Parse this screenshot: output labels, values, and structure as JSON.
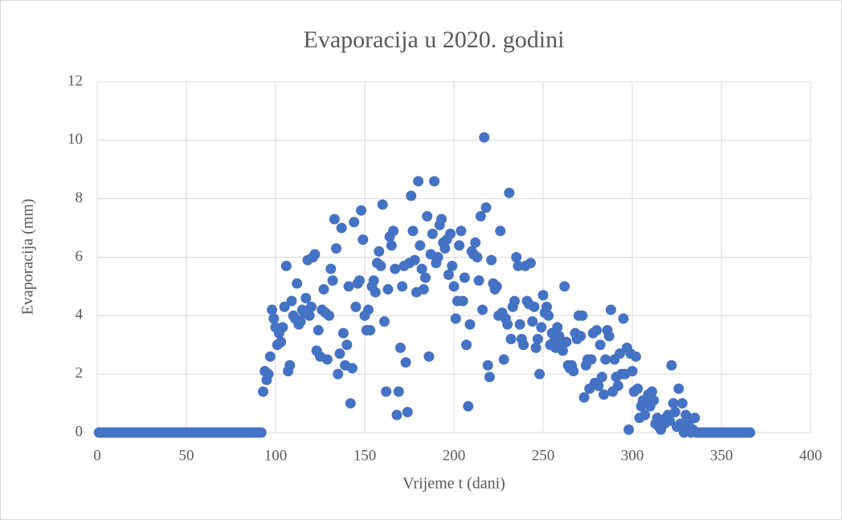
{
  "chart_data": {
    "type": "scatter",
    "title": "Evaporacija u 2020. godini",
    "x_label": "Vrijeme t (dani)",
    "y_label": "Evaporacija (mm)",
    "color": "#4472c4",
    "grid": true,
    "xlim": [
      0,
      400
    ],
    "xticks": [
      0,
      50,
      100,
      150,
      200,
      250,
      300,
      350,
      400
    ],
    "ylim": [
      0,
      12
    ],
    "yticks": [
      0,
      2,
      4,
      6,
      8,
      10,
      12
    ],
    "x": [
      1,
      2,
      3,
      4,
      5,
      6,
      7,
      8,
      9,
      10,
      11,
      12,
      13,
      14,
      15,
      16,
      17,
      18,
      19,
      20,
      21,
      22,
      23,
      24,
      25,
      26,
      27,
      28,
      29,
      30,
      31,
      32,
      33,
      34,
      35,
      36,
      37,
      38,
      39,
      40,
      41,
      42,
      43,
      44,
      45,
      46,
      47,
      48,
      49,
      50,
      51,
      52,
      53,
      54,
      55,
      56,
      57,
      58,
      59,
      60,
      61,
      62,
      63,
      64,
      65,
      66,
      67,
      68,
      69,
      70,
      71,
      72,
      73,
      74,
      75,
      76,
      77,
      78,
      79,
      80,
      81,
      82,
      83,
      84,
      85,
      86,
      87,
      88,
      89,
      90,
      91,
      92,
      93,
      94,
      95,
      96,
      97,
      98,
      99,
      100,
      101,
      102,
      103,
      104,
      105,
      106,
      107,
      108,
      109,
      110,
      111,
      112,
      113,
      114,
      115,
      116,
      117,
      118,
      119,
      120,
      121,
      122,
      123,
      124,
      125,
      126,
      127,
      128,
      129,
      130,
      131,
      132,
      133,
      134,
      135,
      136,
      137,
      138,
      139,
      140,
      141,
      142,
      143,
      144,
      145,
      146,
      147,
      148,
      149,
      150,
      151,
      152,
      153,
      154,
      155,
      156,
      157,
      158,
      159,
      160,
      161,
      162,
      163,
      164,
      165,
      166,
      167,
      168,
      169,
      170,
      171,
      172,
      173,
      174,
      175,
      176,
      177,
      178,
      179,
      180,
      181,
      182,
      183,
      184,
      185,
      186,
      187,
      188,
      189,
      190,
      191,
      192,
      193,
      194,
      195,
      196,
      197,
      198,
      199,
      200,
      201,
      202,
      203,
      204,
      205,
      206,
      207,
      208,
      209,
      210,
      211,
      212,
      213,
      214,
      215,
      216,
      217,
      218,
      219,
      220,
      221,
      222,
      223,
      224,
      225,
      226,
      227,
      228,
      229,
      230,
      231,
      232,
      233,
      234,
      235,
      236,
      237,
      238,
      239,
      240,
      241,
      242,
      243,
      244,
      245,
      246,
      247,
      248,
      249,
      250,
      251,
      252,
      253,
      254,
      255,
      256,
      257,
      258,
      259,
      260,
      261,
      262,
      263,
      264,
      265,
      266,
      267,
      268,
      269,
      270,
      271,
      272,
      273,
      274,
      275,
      276,
      277,
      278,
      279,
      280,
      281,
      282,
      283,
      284,
      285,
      286,
      287,
      288,
      289,
      290,
      291,
      292,
      293,
      294,
      295,
      296,
      297,
      298,
      299,
      300,
      301,
      302,
      303,
      304,
      305,
      306,
      307,
      308,
      309,
      310,
      311,
      312,
      313,
      314,
      315,
      316,
      317,
      318,
      319,
      320,
      321,
      322,
      323,
      324,
      325,
      326,
      327,
      328,
      329,
      330,
      331,
      332,
      333,
      334,
      335,
      336,
      337,
      338,
      339,
      340,
      341,
      342,
      343,
      344,
      345,
      346,
      347,
      348,
      349,
      350,
      351,
      352,
      353,
      354,
      355,
      356,
      357,
      358,
      359,
      360,
      361,
      362,
      363,
      364,
      365,
      366
    ],
    "y": [
      0,
      0,
      0,
      0,
      0,
      0,
      0,
      0,
      0,
      0,
      0,
      0,
      0,
      0,
      0,
      0,
      0,
      0,
      0,
      0,
      0,
      0,
      0,
      0,
      0,
      0,
      0,
      0,
      0,
      0,
      0,
      0,
      0,
      0,
      0,
      0,
      0,
      0,
      0,
      0,
      0,
      0,
      0,
      0,
      0,
      0,
      0,
      0,
      0,
      0,
      0,
      0,
      0,
      0,
      0,
      0,
      0,
      0,
      0,
      0,
      0,
      0,
      0,
      0,
      0,
      0,
      0,
      0,
      0,
      0,
      0,
      0,
      0,
      0,
      0,
      0,
      0,
      0,
      0,
      0,
      0,
      0,
      0,
      0,
      0,
      0,
      0,
      0,
      0,
      0,
      0,
      0,
      1.4,
      2.1,
      1.8,
      2.0,
      2.6,
      4.2,
      3.9,
      3.6,
      3.0,
      3.4,
      3.1,
      3.6,
      4.3,
      5.7,
      2.1,
      2.3,
      4.5,
      4.0,
      3.9,
      5.1,
      3.7,
      3.8,
      4.2,
      4.1,
      4.6,
      5.9,
      4.0,
      4.3,
      6.0,
      6.1,
      2.8,
      3.5,
      2.6,
      4.2,
      4.9,
      4.1,
      2.5,
      4.0,
      5.6,
      5.2,
      7.3,
      6.3,
      2.0,
      2.7,
      7.0,
      3.4,
      2.3,
      3.0,
      5.0,
      1.0,
      2.2,
      7.2,
      4.3,
      5.1,
      5.2,
      7.6,
      6.6,
      4.0,
      3.5,
      4.2,
      3.5,
      5.0,
      5.2,
      4.8,
      5.8,
      6.2,
      5.7,
      7.8,
      3.8,
      1.4,
      4.9,
      6.7,
      6.4,
      6.9,
      5.6,
      0.6,
      1.4,
      2.9,
      5.0,
      5.7,
      2.4,
      0.7,
      5.8,
      8.1,
      6.9,
      5.9,
      4.8,
      8.6,
      6.4,
      5.6,
      4.9,
      5.3,
      7.4,
      2.6,
      6.1,
      6.8,
      8.6,
      5.8,
      6.0,
      7.1,
      7.3,
      6.5,
      6.3,
      6.6,
      5.4,
      6.8,
      5.7,
      5.0,
      3.9,
      4.5,
      6.4,
      6.9,
      4.5,
      5.3,
      3.0,
      0.9,
      3.7,
      6.2,
      6.1,
      6.5,
      6.0,
      5.2,
      7.4,
      4.2,
      10.1,
      7.7,
      2.3,
      1.9,
      5.9,
      5.1,
      4.9,
      5.0,
      4.0,
      6.9,
      4.1,
      2.5,
      3.9,
      3.7,
      8.2,
      3.2,
      4.3,
      4.5,
      6.0,
      5.7,
      3.7,
      3.2,
      3.0,
      5.7,
      4.5,
      4.4,
      5.8,
      3.8,
      4.3,
      2.9,
      3.2,
      2.0,
      3.6,
      4.7,
      4.1,
      4.3,
      4.0,
      3.0,
      3.4,
      3.1,
      2.9,
      3.6,
      3.3,
      3.0,
      2.8,
      5.0,
      3.1,
      2.3,
      2.2,
      2.3,
      2.1,
      3.4,
      3.2,
      4.0,
      3.3,
      4.0,
      1.2,
      2.3,
      2.5,
      1.5,
      2.5,
      3.4,
      1.7,
      3.5,
      1.6,
      3.0,
      1.9,
      1.3,
      2.5,
      3.5,
      3.3,
      4.2,
      1.4,
      2.5,
      1.9,
      1.6,
      2.7,
      2.0,
      3.9,
      2.0,
      2.9,
      0.1,
      2.7,
      2.1,
      1.4,
      2.6,
      1.5,
      0.5,
      0.9,
      1.1,
      0.6,
      1.0,
      1.3,
      0.9,
      1.4,
      1.1,
      0.3,
      0.5,
      0.2,
      0.1,
      0.4,
      0.3,
      0.5,
      0.6,
      0.4,
      2.3,
      1.0,
      0.7,
      0.2,
      1.5,
      0.3,
      1.0,
      0.0,
      0.6,
      0.2,
      0.4,
      0.0,
      0.1,
      0.5,
      0,
      0,
      0,
      0,
      0,
      0,
      0,
      0,
      0,
      0,
      0,
      0,
      0,
      0,
      0,
      0,
      0,
      0,
      0,
      0,
      0,
      0,
      0,
      0,
      0,
      0,
      0,
      0,
      0,
      0,
      0
    ]
  }
}
